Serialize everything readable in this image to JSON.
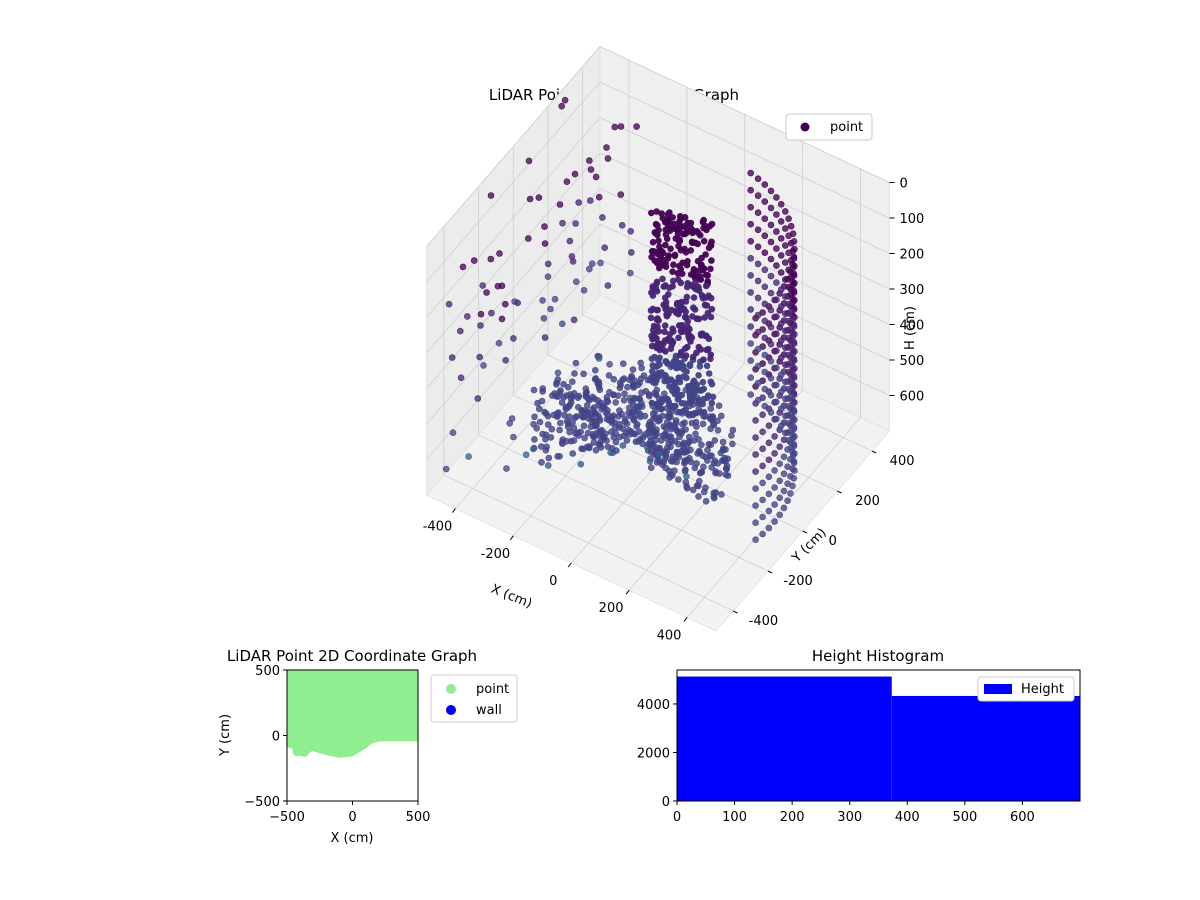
{
  "chart_data": [
    {
      "type": "scatter",
      "projection": "3d",
      "title": "LiDAR Point 3D Coordinate Graph",
      "xlabel": "X (cm)",
      "ylabel": "Y (cm)",
      "zlabel": "H (cm)",
      "xlim": [
        -500,
        500
      ],
      "ylim": [
        -500,
        500
      ],
      "zlim": [
        0,
        700
      ],
      "zaxis_inverted": true,
      "xticks": [
        "-400",
        "-200",
        "0",
        "200",
        "400"
      ],
      "yticks": [
        "-400",
        "-200",
        "0",
        "200",
        "400"
      ],
      "zticks": [
        "0",
        "100",
        "200",
        "300",
        "400",
        "500",
        "600"
      ],
      "legend": [
        "point"
      ],
      "legend_placement": "top-right",
      "grid": true,
      "colormap": "viridis",
      "series": [
        {
          "name": "point",
          "color": "#440154"
        }
      ]
    },
    {
      "type": "scatter",
      "title": "LiDAR Point 2D Coordinate Graph",
      "xlabel": "X (cm)",
      "ylabel": "Y (cm)",
      "xlim": [
        -500,
        500
      ],
      "ylim": [
        -500,
        500
      ],
      "xticks": [
        -500,
        0,
        500
      ],
      "yticks": [
        -500,
        0,
        500
      ],
      "legend_placement": "outside-right",
      "series": [
        {
          "name": "point",
          "color": "#90ee90"
        },
        {
          "name": "wall",
          "color": "#0000ff"
        }
      ],
      "point_region_boundary": [
        [
          -500,
          30
        ],
        [
          -480,
          -90
        ],
        [
          -430,
          -120
        ],
        [
          -400,
          -150
        ],
        [
          -350,
          -100
        ],
        [
          -300,
          -120
        ],
        [
          -200,
          -150
        ],
        [
          -100,
          -170
        ],
        [
          0,
          -160
        ],
        [
          100,
          -100
        ],
        [
          150,
          -60
        ],
        [
          200,
          -45
        ],
        [
          500,
          -45
        ]
      ]
    },
    {
      "type": "bar",
      "subtype": "histogram",
      "title": "Height Histogram",
      "xlim": [
        0,
        700
      ],
      "ylim": [
        0,
        5400
      ],
      "xticks": [
        0,
        100,
        200,
        300,
        400,
        500,
        600
      ],
      "yticks": [
        0,
        2000,
        4000
      ],
      "legend": [
        "Height"
      ],
      "legend_placement": "top-right",
      "series": [
        {
          "name": "Height",
          "color": "#0000ff"
        }
      ],
      "bins": [
        {
          "from": 0,
          "to": 373,
          "count": 5130
        },
        {
          "from": 373,
          "to": 700,
          "count": 4330
        }
      ]
    }
  ]
}
